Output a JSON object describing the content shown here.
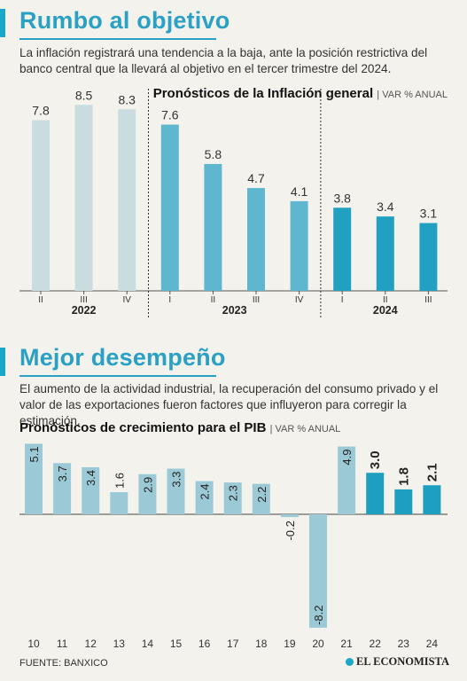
{
  "section1": {
    "title": "Rumbo al objetivo",
    "description": "La inflación registrará una tendencia a la baja, ante la posición restrictiva del banco central que la llevará al objetivo en el tercer trimestre del 2024."
  },
  "section2": {
    "title": "Mejor desempeño",
    "description": "El aumento de la actividad industrial, la recuperación del consumo privado y el valor de las exportaciones fueron factores que influyeron para corregir la estimación."
  },
  "colors": {
    "accent": "#2aa1c4",
    "light_bar": "#c9dde0",
    "mid_bar": "#5fb7cf",
    "strong_bar": "#22a0c2",
    "pib_bar": "#9cc9d6",
    "pib_highlight": "#1d9fc2"
  },
  "chart_data": [
    {
      "type": "bar",
      "title": "Pronósticos de la Inflación general",
      "unit": "VAR % ANUAL",
      "categories": [
        "II",
        "III",
        "IV",
        "I",
        "II",
        "III",
        "IV",
        "I",
        "II",
        "III"
      ],
      "groups": [
        {
          "label": "2022",
          "start": 0,
          "end": 2
        },
        {
          "label": "2023",
          "start": 3,
          "end": 6
        },
        {
          "label": "2024",
          "start": 7,
          "end": 9
        }
      ],
      "values": [
        7.8,
        8.5,
        8.3,
        7.6,
        5.8,
        4.7,
        4.1,
        3.8,
        3.4,
        3.1
      ],
      "ylim": [
        0,
        9
      ]
    },
    {
      "type": "bar",
      "title": "Pronósticos de crecimiento para el PIB",
      "unit": "VAR % ANUAL",
      "categories": [
        "10",
        "11",
        "12",
        "13",
        "14",
        "15",
        "16",
        "17",
        "18",
        "19",
        "20",
        "21",
        "22",
        "23",
        "24"
      ],
      "values": [
        5.1,
        3.7,
        3.4,
        1.6,
        2.9,
        3.3,
        2.4,
        2.3,
        2.2,
        -0.2,
        -8.2,
        4.9,
        3.0,
        1.8,
        2.1
      ],
      "value_labels": [
        "5.1",
        "3.7",
        "3.4",
        "1.6",
        "2.9",
        "3.3",
        "2.4",
        "2.3",
        "2.2",
        "-0.2",
        "-8.2",
        "4.9",
        "3.0",
        "1.8",
        "2.1"
      ],
      "highlighted": [
        12,
        13,
        14
      ],
      "ylim": [
        -8.5,
        5.5
      ]
    }
  ],
  "footer": {
    "source": "FUENTE: BANXICO",
    "logo": "EL ECONOMISTA"
  }
}
